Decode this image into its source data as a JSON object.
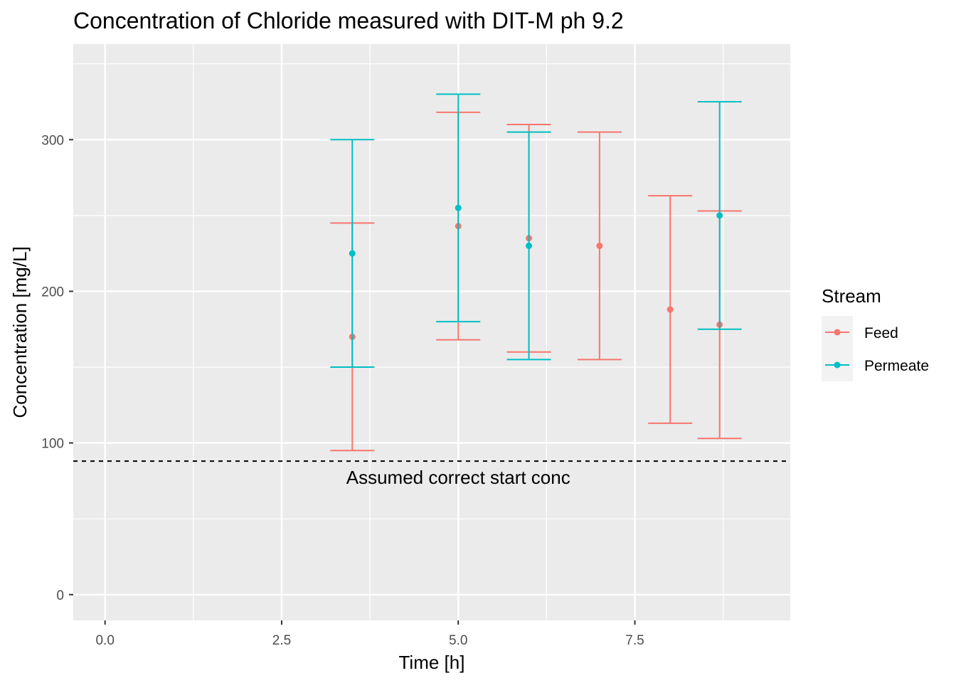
{
  "chart_data": {
    "type": "scatter",
    "title": "Concentration of Chloride measured with DIT-M ph 9.2",
    "xlabel": "Time [h]",
    "ylabel": "Concentration [mg/L]",
    "xlim": [
      -0.45,
      9.7
    ],
    "ylim": [
      -17,
      363
    ],
    "x_ticks": [
      0.0,
      2.5,
      5.0,
      7.5
    ],
    "x_tick_labels": [
      "0.0",
      "2.5",
      "5.0",
      "7.5"
    ],
    "y_ticks": [
      0,
      100,
      200,
      300
    ],
    "y_tick_labels": [
      "0",
      "100",
      "200",
      "300"
    ],
    "grid": true,
    "legend": {
      "title": "Stream",
      "position": "right"
    },
    "series": [
      {
        "name": "Feed",
        "color": "#F8766D",
        "points": [
          {
            "x": 3.5,
            "y": 170,
            "ymin": 95,
            "ymax": 245
          },
          {
            "x": 5.0,
            "y": 243,
            "ymin": 168,
            "ymax": 318
          },
          {
            "x": 6.0,
            "y": 235,
            "ymin": 160,
            "ymax": 310
          },
          {
            "x": 7.0,
            "y": 230,
            "ymin": 155,
            "ymax": 305
          },
          {
            "x": 8.0,
            "y": 188,
            "ymin": 113,
            "ymax": 263
          },
          {
            "x": 8.7,
            "y": 178,
            "ymin": 103,
            "ymax": 253
          }
        ]
      },
      {
        "name": "Permeate",
        "color": "#00BFC4",
        "points": [
          {
            "x": 3.5,
            "y": 225,
            "ymin": 150,
            "ymax": 300
          },
          {
            "x": 5.0,
            "y": 255,
            "ymin": 180,
            "ymax": 330
          },
          {
            "x": 6.0,
            "y": 230,
            "ymin": 155,
            "ymax": 305
          },
          {
            "x": 8.7,
            "y": 250,
            "ymin": 175,
            "ymax": 325
          }
        ]
      }
    ],
    "hline": {
      "y": 88,
      "style": "dashed",
      "color": "#000000"
    },
    "annotation": {
      "text": "Assumed correct start conc",
      "x": 5.0,
      "y": 73
    }
  }
}
